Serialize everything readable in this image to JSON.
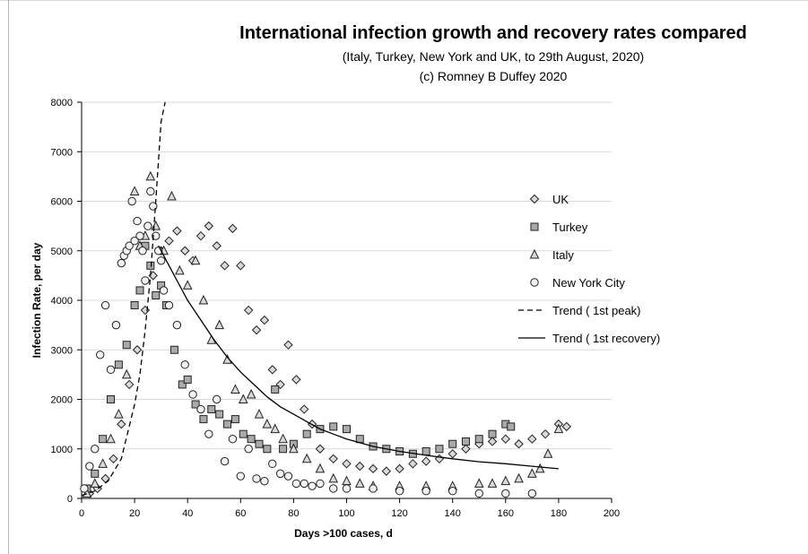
{
  "chart_data": {
    "type": "scatter",
    "title": "International infection growth and recovery rates compared",
    "subtitle": [
      "(Italy, Turkey, New York and UK, to 29th August, 2020)",
      "(c) Romney B Duffey 2020"
    ],
    "xlabel": "Days >100 cases, d",
    "ylabel": "Infection Rate, per day",
    "xlim": [
      0,
      200
    ],
    "ylim": [
      0,
      8000
    ],
    "x_ticks": [
      0,
      20,
      40,
      60,
      80,
      100,
      120,
      140,
      160,
      180,
      200
    ],
    "y_ticks": [
      0,
      1000,
      2000,
      3000,
      4000,
      5000,
      6000,
      7000,
      8000
    ],
    "grid": "horizontal",
    "legend_position": "right",
    "legend": [
      "UK",
      "Turkey",
      "Italy",
      "New York City",
      "Trend ( 1st peak)",
      "Trend ( 1st recovery)"
    ],
    "series": [
      {
        "name": "UK",
        "marker": "diamond",
        "x": [
          3,
          6,
          9,
          12,
          15,
          18,
          21,
          24,
          27,
          30,
          33,
          36,
          39,
          42,
          45,
          48,
          51,
          54,
          57,
          60,
          63,
          66,
          69,
          72,
          75,
          78,
          81,
          84,
          87,
          90,
          95,
          100,
          105,
          110,
          115,
          120,
          125,
          130,
          135,
          140,
          145,
          150,
          155,
          160,
          165,
          170,
          175,
          180,
          183
        ],
        "y": [
          100,
          200,
          400,
          800,
          1500,
          2300,
          3000,
          3800,
          4500,
          5000,
          5200,
          5400,
          5000,
          4800,
          5300,
          5500,
          5100,
          4700,
          5450,
          4700,
          3800,
          3400,
          3600,
          2600,
          2300,
          3100,
          2400,
          1800,
          1500,
          1000,
          800,
          700,
          650,
          600,
          550,
          600,
          700,
          750,
          800,
          900,
          1000,
          1100,
          1150,
          1200,
          1100,
          1200,
          1300,
          1500,
          1450
        ]
      },
      {
        "name": "Turkey",
        "marker": "square",
        "x": [
          2,
          5,
          8,
          11,
          14,
          17,
          20,
          22,
          24,
          26,
          28,
          30,
          32,
          35,
          38,
          40,
          43,
          46,
          49,
          52,
          55,
          58,
          61,
          64,
          67,
          70,
          73,
          76,
          80,
          85,
          90,
          95,
          100,
          105,
          110,
          115,
          120,
          125,
          130,
          135,
          140,
          145,
          150,
          155,
          160,
          162
        ],
        "y": [
          200,
          500,
          1200,
          2000,
          2700,
          3100,
          3900,
          4200,
          5100,
          4700,
          4100,
          4300,
          3900,
          3000,
          2300,
          2400,
          1900,
          1600,
          1800,
          1700,
          1500,
          1600,
          1300,
          1200,
          1100,
          1000,
          2200,
          1000,
          1100,
          1300,
          1400,
          1450,
          1400,
          1200,
          1050,
          1000,
          950,
          900,
          950,
          1000,
          1100,
          1150,
          1200,
          1300,
          1500,
          1450
        ]
      },
      {
        "name": "Italy",
        "marker": "triangle",
        "x": [
          2,
          5,
          8,
          11,
          14,
          17,
          20,
          22,
          24,
          26,
          28,
          31,
          34,
          37,
          40,
          43,
          46,
          49,
          52,
          55,
          58,
          61,
          64,
          67,
          70,
          73,
          76,
          80,
          85,
          90,
          95,
          100,
          105,
          110,
          120,
          130,
          140,
          150,
          155,
          160,
          165,
          170,
          173,
          176,
          180
        ],
        "y": [
          100,
          300,
          700,
          1200,
          1700,
          2500,
          6200,
          5100,
          5300,
          6500,
          5500,
          5000,
          6100,
          4600,
          4300,
          4800,
          4000,
          3200,
          3500,
          2800,
          2200,
          2000,
          2100,
          1700,
          1500,
          1400,
          1200,
          1000,
          800,
          600,
          400,
          350,
          300,
          250,
          250,
          250,
          250,
          300,
          300,
          350,
          400,
          500,
          600,
          900,
          1400
        ]
      },
      {
        "name": "New York City",
        "marker": "circle",
        "x": [
          1,
          3,
          5,
          7,
          9,
          11,
          13,
          15,
          16,
          17,
          18,
          19,
          20,
          21,
          22,
          23,
          24,
          25,
          26,
          27,
          28,
          29,
          30,
          31,
          33,
          36,
          39,
          42,
          45,
          48,
          51,
          54,
          57,
          60,
          63,
          66,
          69,
          72,
          75,
          78,
          81,
          84,
          87,
          90,
          95,
          100,
          110,
          120,
          130,
          140,
          150,
          160,
          170
        ],
        "y": [
          200,
          650,
          1000,
          2900,
          3900,
          2600,
          3500,
          4750,
          4900,
          5000,
          5100,
          6000,
          5200,
          5600,
          5300,
          5000,
          4400,
          5500,
          6200,
          5900,
          5300,
          5000,
          4800,
          4200,
          3900,
          3500,
          2700,
          2100,
          1800,
          1300,
          2000,
          750,
          1200,
          450,
          1000,
          400,
          350,
          700,
          500,
          450,
          300,
          300,
          250,
          300,
          200,
          200,
          200,
          150,
          150,
          150,
          100,
          100,
          100
        ]
      },
      {
        "name": "Trend ( 1st peak)",
        "style": "dashed",
        "x": [
          0,
          5,
          10,
          15,
          20,
          22,
          24,
          26,
          28,
          30,
          31.5
        ],
        "y": [
          60,
          150,
          350,
          800,
          1900,
          2500,
          3400,
          4500,
          6000,
          7600,
          8000
        ]
      },
      {
        "name": "Trend ( 1st recovery)",
        "style": "solid",
        "x": [
          29,
          35,
          40,
          45,
          50,
          55,
          60,
          65,
          70,
          75,
          80,
          85,
          90,
          95,
          100,
          110,
          120,
          130,
          140,
          150,
          160,
          170,
          180
        ],
        "y": [
          5100,
          4500,
          4000,
          3600,
          3200,
          2850,
          2550,
          2300,
          2050,
          1850,
          1700,
          1550,
          1400,
          1300,
          1200,
          1050,
          950,
          870,
          800,
          740,
          700,
          650,
          600
        ]
      }
    ]
  }
}
